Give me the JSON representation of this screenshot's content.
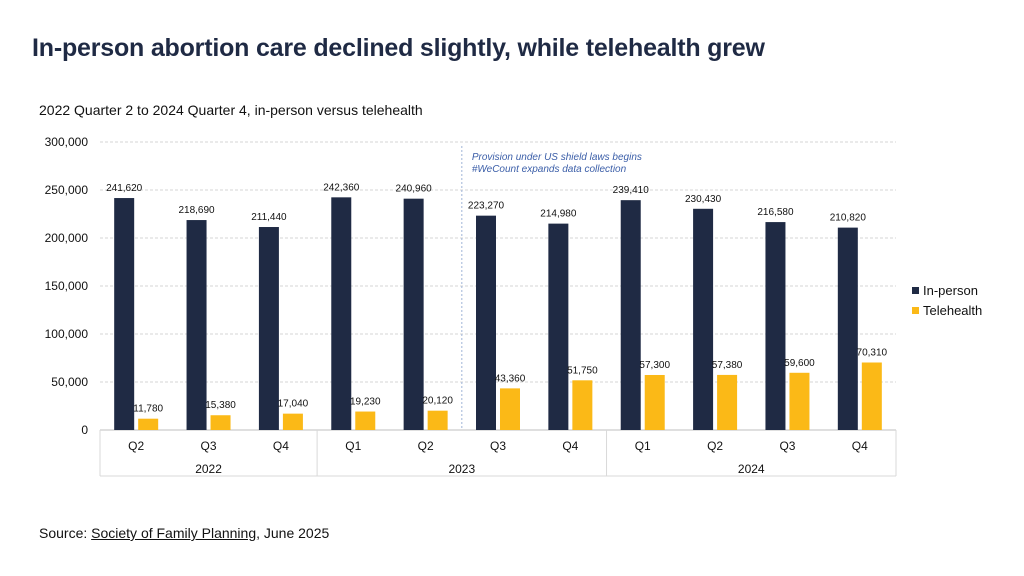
{
  "page": {
    "title": "In-person abortion care declined slightly, while telehealth grew",
    "source_prefix": "Source: ",
    "source_link": "Society of Family Planning",
    "source_suffix": ", June 2025"
  },
  "chart_data": {
    "type": "bar",
    "title": "2022 Quarter 2 to 2024 Quarter 4, in-person versus telehealth",
    "xlabel": "",
    "ylabel": "",
    "ylim": [
      0,
      300000
    ],
    "yticks": [
      0,
      50000,
      100000,
      150000,
      200000,
      250000,
      300000
    ],
    "ytick_labels": [
      "0",
      "50,000",
      "100,000",
      "150,000",
      "200,000",
      "250,000",
      "300,000"
    ],
    "categories": [
      "Q2",
      "Q3",
      "Q4",
      "Q1",
      "Q2",
      "Q3",
      "Q4",
      "Q1",
      "Q2",
      "Q3",
      "Q4"
    ],
    "year_groups": [
      {
        "label": "2022",
        "count": 3
      },
      {
        "label": "2023",
        "count": 4
      },
      {
        "label": "2024",
        "count": 4
      }
    ],
    "series": [
      {
        "name": "In-person",
        "color": "#1f2a44",
        "values": [
          241620,
          218690,
          211440,
          242360,
          240960,
          223270,
          214980,
          239410,
          230430,
          216580,
          210820
        ],
        "labels": [
          "241,620",
          "218,690",
          "211,440",
          "242,360",
          "240,960",
          "223,270",
          "214,980",
          "239,410",
          "230,430",
          "216,580",
          "210,820"
        ]
      },
      {
        "name": "Telehealth",
        "color": "#fbb917",
        "values": [
          11780,
          15380,
          17040,
          19230,
          20120,
          43360,
          51750,
          57300,
          57380,
          59600,
          70310
        ],
        "labels": [
          "11,780",
          "15,380",
          "17,040",
          "19,230",
          "20,120",
          "43,360",
          "51,750",
          "57,300",
          "57,380",
          "59,600",
          "70,310"
        ]
      }
    ],
    "annotation": {
      "lines": [
        "Provision under US shield laws begins",
        "#WeCount expands data collection"
      ],
      "after_category_index": 4
    },
    "legend_position": "right",
    "grid": true
  }
}
